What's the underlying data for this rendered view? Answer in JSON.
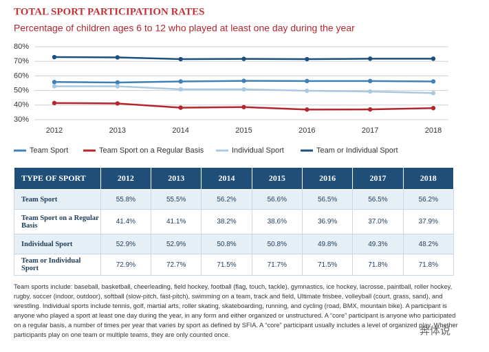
{
  "chart_data": {
    "type": "line",
    "title": "TOTAL SPORT PARTICIPATION RATES",
    "subtitle": "Percentage of children ages 6 to 12 who played at least one day during the year",
    "categories": [
      "2012",
      "2013",
      "2014",
      "2015",
      "2016",
      "2017",
      "2018"
    ],
    "ylim": [
      30,
      80
    ],
    "yticks": [
      {
        "value": 30,
        "label": "30%"
      },
      {
        "value": 40,
        "label": "40%"
      },
      {
        "value": 50,
        "label": "50%"
      },
      {
        "value": 60,
        "label": "60%"
      },
      {
        "value": 70,
        "label": "70%"
      },
      {
        "value": 80,
        "label": "80%"
      }
    ],
    "grid": true,
    "series": [
      {
        "name": "Team Sport",
        "color": "#3f80b6",
        "values": [
          55.8,
          55.5,
          56.2,
          56.6,
          56.5,
          56.5,
          56.2
        ]
      },
      {
        "name": "Team Sport on a Regular Basis",
        "color": "#b4262d",
        "values": [
          41.4,
          41.1,
          38.2,
          38.6,
          36.9,
          37.0,
          37.9
        ]
      },
      {
        "name": "Individual Sport",
        "color": "#a9c9e1",
        "values": [
          52.9,
          52.9,
          50.8,
          50.8,
          49.8,
          49.3,
          48.2
        ]
      },
      {
        "name": "Team or Individual Sport",
        "color": "#1b4f7d",
        "values": [
          72.9,
          72.7,
          71.5,
          71.7,
          71.5,
          71.8,
          71.8
        ]
      }
    ]
  },
  "table": {
    "header": [
      "TYPE OF SPORT",
      "2012",
      "2013",
      "2014",
      "2015",
      "2016",
      "2017",
      "2018"
    ],
    "rows": [
      [
        "Team Sport",
        "55.8%",
        "55.5%",
        "56.2%",
        "56.6%",
        "56.5%",
        "56.5%",
        "56.2%"
      ],
      [
        "Team Sport on a Regular Basis",
        "41.4%",
        "41.1%",
        "38.2%",
        "38.6%",
        "36.9%",
        "37.0%",
        "37.9%"
      ],
      [
        "Individual Sport",
        "52.9%",
        "52.9%",
        "50.8%",
        "50.8%",
        "49.8%",
        "49.3%",
        "48.2%"
      ],
      [
        "Team or Individual Sport",
        "72.9%",
        "72.7%",
        "71.5%",
        "71.7%",
        "71.5%",
        "71.8%",
        "71.8%"
      ]
    ]
  },
  "footnote": "Team sports include: baseball, basketball, cheerleading, field hockey, football (flag, touch, tackle), gymnastics, ice hockey, lacrosse, paintball, roller hockey, rugby, soccer (indoor, outdoor), softball (slow-pitch, fast-pitch), swimming on a team, track and field, Ultimate frisbee, volleyball (court, grass, sand), and wrestling. Individual sports include tennis, golf, martial arts, roller skating, skateboarding, running, and cycling (road, BMX, mountain bike). A participant is anyone who played a sport at least one day during the year, in any form and either organized or unstructured. A “core” participant is anyone who participated on a regular basis, a number of times per year that varies by sport as defined by SFIA. A “core” participant usually includes a level of organized play. Whether participants play on one team or multiple teams, they are only counted once.",
  "watermark": "奔体说"
}
